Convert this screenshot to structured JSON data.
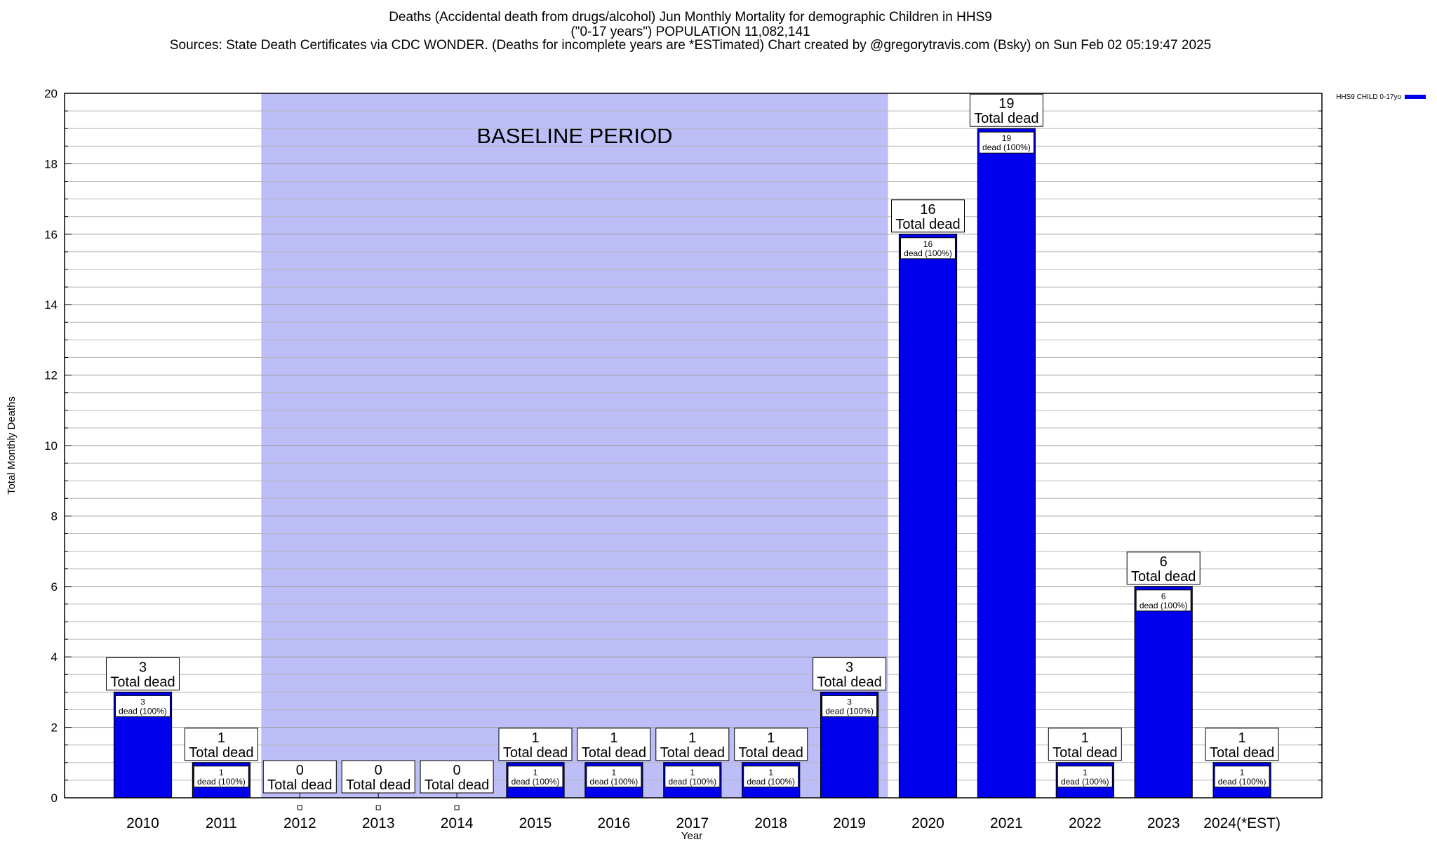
{
  "header": {
    "line1": "Deaths (Accidental death from drugs/alcohol) Jun Monthly Mortality for demographic Children in HHS9",
    "line2": "(\"0-17 years\") POPULATION 11,082,141",
    "line3": "Sources: State Death Certificates via CDC WONDER. (Deaths for incomplete years are *ESTimated)                Chart created by @gregorytravis.com (Bsky) on Sun Feb 02 05:19:47 2025"
  },
  "chart_data": {
    "type": "bar",
    "xlabel": "Year",
    "ylabel": "Total Monthly Deaths",
    "ylim": [
      0,
      20
    ],
    "y_ticks": [
      0,
      2,
      4,
      6,
      8,
      10,
      12,
      14,
      16,
      18,
      20
    ],
    "grid": true,
    "legend_position": "top-right",
    "categories": [
      "2010",
      "2011",
      "2012",
      "2013",
      "2014",
      "2015",
      "2016",
      "2017",
      "2018",
      "2019",
      "2020",
      "2021",
      "2022",
      "2023",
      "2024(*EST)"
    ],
    "series": [
      {
        "name": "HHS9 CHILD 0-17yo",
        "color": "#0000ee",
        "values": [
          3,
          1,
          0,
          0,
          0,
          1,
          1,
          1,
          1,
          3,
          16,
          19,
          1,
          6,
          1
        ]
      }
    ],
    "total_label_suffix": "Total dead",
    "inner_label_suffix": "dead (100%)",
    "baseline": {
      "label": "BASELINE PERIOD",
      "from": "2012",
      "to": "2019",
      "color": "#bdbdf7"
    }
  }
}
